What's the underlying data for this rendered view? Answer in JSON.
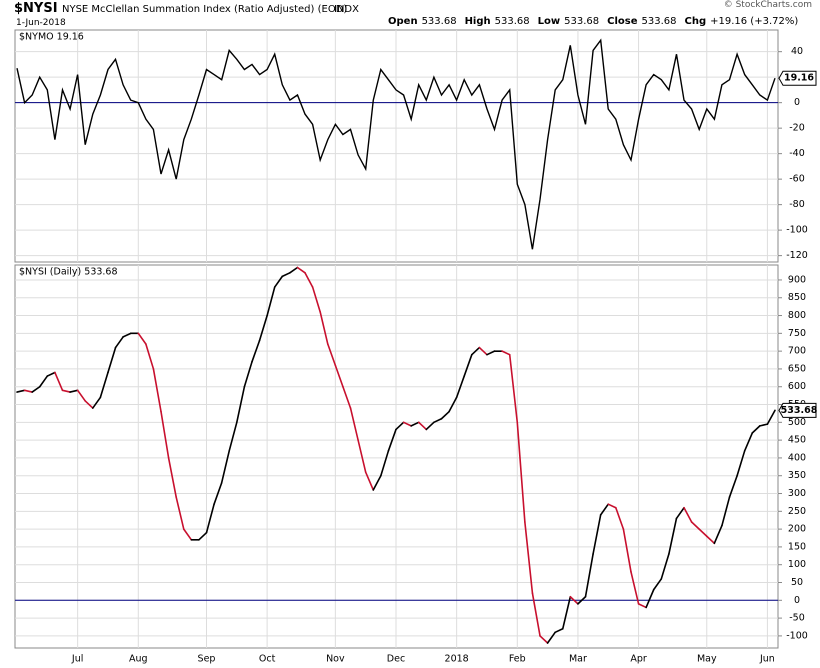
{
  "header": {
    "symbol": "$NYSI",
    "name": "NYSE McClellan Summation Index (Ratio Adjusted) (EOD)",
    "exchange": "INDX",
    "date": "1-Jun-2018",
    "copyright": "© StockCharts.com",
    "quote": [
      {
        "label": "Open",
        "value": "533.68"
      },
      {
        "label": "High",
        "value": "533.68"
      },
      {
        "label": "Low",
        "value": "533.68"
      },
      {
        "label": "Close",
        "value": "533.68"
      },
      {
        "label": "Chg",
        "value": "+19.16 (+3.72%)"
      }
    ]
  },
  "chart_data": [
    {
      "type": "line",
      "title": "$NYMO 19.16",
      "last_value_label": "19.16",
      "color": "#000000",
      "zero_line_color": "#000080",
      "grid": true,
      "categories": [
        null,
        null,
        null,
        null,
        null,
        null,
        null,
        null,
        "Jul",
        null,
        null,
        null,
        null,
        null,
        null,
        null,
        "Aug",
        null,
        null,
        null,
        null,
        null,
        null,
        null,
        null,
        "Sep",
        null,
        null,
        null,
        null,
        null,
        null,
        null,
        "Oct",
        null,
        null,
        null,
        null,
        null,
        null,
        null,
        null,
        "Nov",
        null,
        null,
        null,
        null,
        null,
        null,
        null,
        "Dec",
        null,
        null,
        null,
        null,
        null,
        null,
        null,
        "2018",
        null,
        null,
        null,
        null,
        null,
        null,
        null,
        "Feb",
        null,
        null,
        null,
        null,
        null,
        null,
        null,
        "Mar",
        null,
        null,
        null,
        null,
        null,
        null,
        null,
        "Apr",
        null,
        null,
        null,
        null,
        null,
        null,
        null,
        null,
        "May",
        null,
        null,
        null,
        null,
        null,
        null,
        null,
        "Jun",
        null
      ],
      "values": [
        27,
        0,
        6,
        20,
        10,
        -29,
        10,
        -5,
        22,
        -33,
        -9,
        6,
        26,
        34,
        14,
        2,
        0,
        -13,
        -21,
        -56,
        -37,
        -60,
        -29,
        -13,
        6,
        26,
        22,
        18,
        41,
        34,
        26,
        30,
        22,
        26,
        38,
        14,
        2,
        6,
        -9,
        -17,
        -45,
        -29,
        -17,
        -25,
        -21,
        -41,
        -52,
        2,
        26,
        18,
        10,
        6,
        -13,
        14,
        2,
        20,
        6,
        14,
        2,
        18,
        6,
        14,
        -5,
        -21,
        2,
        10,
        -64,
        -80,
        -115,
        -76,
        -29,
        10,
        18,
        45,
        6,
        -17,
        41,
        49,
        -5,
        -13,
        -33,
        -45,
        -13,
        14,
        22,
        18,
        10,
        38,
        2,
        -5,
        -21,
        -5,
        -13,
        14,
        18,
        38,
        22,
        14,
        6,
        2,
        19.16
      ],
      "ylim": [
        -125,
        57
      ],
      "yticks": [
        40,
        20,
        0,
        -20,
        -40,
        -60,
        -80,
        -100,
        -120
      ]
    },
    {
      "type": "line",
      "title": "$NYSI (Daily) 533.68",
      "last_value_label": "533.68",
      "up_color": "#000000",
      "down_color": "#c8102e",
      "zero_line_color": "#000080",
      "grid": true,
      "categories": [
        null,
        null,
        null,
        null,
        null,
        null,
        null,
        null,
        "Jul",
        null,
        null,
        null,
        null,
        null,
        null,
        null,
        "Aug",
        null,
        null,
        null,
        null,
        null,
        null,
        null,
        null,
        "Sep",
        null,
        null,
        null,
        null,
        null,
        null,
        null,
        "Oct",
        null,
        null,
        null,
        null,
        null,
        null,
        null,
        null,
        "Nov",
        null,
        null,
        null,
        null,
        null,
        null,
        null,
        "Dec",
        null,
        null,
        null,
        null,
        null,
        null,
        null,
        "2018",
        null,
        null,
        null,
        null,
        null,
        null,
        null,
        "Feb",
        null,
        null,
        null,
        null,
        null,
        null,
        null,
        "Mar",
        null,
        null,
        null,
        null,
        null,
        null,
        null,
        "Apr",
        null,
        null,
        null,
        null,
        null,
        null,
        null,
        null,
        "May",
        null,
        null,
        null,
        null,
        null,
        null,
        null,
        "Jun",
        null
      ],
      "values": [
        585,
        590,
        585,
        600,
        630,
        640,
        590,
        585,
        590,
        560,
        540,
        570,
        640,
        710,
        740,
        750,
        750,
        720,
        650,
        530,
        400,
        290,
        200,
        170,
        170,
        190,
        270,
        330,
        420,
        500,
        600,
        670,
        730,
        800,
        880,
        910,
        920,
        935,
        920,
        880,
        810,
        720,
        660,
        600,
        540,
        450,
        360,
        310,
        350,
        420,
        480,
        500,
        490,
        500,
        480,
        500,
        510,
        530,
        570,
        630,
        690,
        710,
        690,
        700,
        700,
        690,
        500,
        220,
        20,
        -100,
        -120,
        -90,
        -80,
        10,
        -10,
        10,
        130,
        240,
        270,
        260,
        200,
        80,
        -10,
        -20,
        30,
        60,
        130,
        230,
        260,
        220,
        200,
        180,
        160,
        210,
        290,
        350,
        420,
        470,
        490,
        495,
        533.68
      ],
      "ylim": [
        -134,
        942
      ],
      "yticks": [
        900,
        850,
        800,
        750,
        700,
        650,
        600,
        550,
        500,
        450,
        400,
        350,
        300,
        250,
        200,
        150,
        100,
        50,
        0,
        -50,
        -100
      ]
    }
  ]
}
